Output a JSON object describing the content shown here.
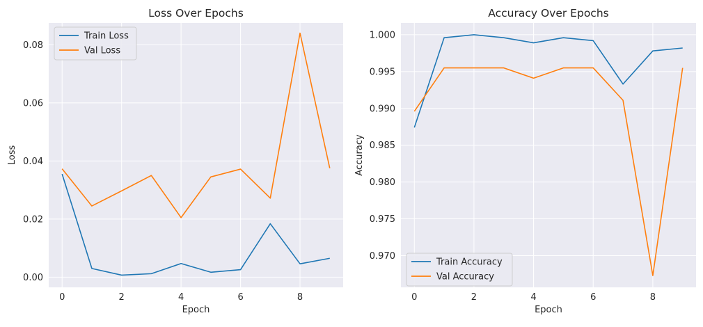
{
  "chart_data": [
    {
      "type": "line",
      "title": "Loss Over Epochs",
      "xlabel": "Epoch",
      "ylabel": "Loss",
      "xlim": [
        -0.45,
        9.45
      ],
      "ylim": [
        -0.0035,
        0.0875
      ],
      "xticks": [
        0,
        2,
        4,
        6,
        8
      ],
      "yticks": [
        0.0,
        0.02,
        0.04,
        0.06,
        0.08
      ],
      "ytick_labels": [
        "0.00",
        "0.02",
        "0.04",
        "0.06",
        "0.08"
      ],
      "x": [
        0,
        1,
        2,
        3,
        4,
        5,
        6,
        7,
        8,
        9
      ],
      "grid": true,
      "legend_position": "top-left",
      "series": [
        {
          "name": "Train Loss",
          "color": "#1f77b4",
          "values": [
            0.0355,
            0.003,
            0.0007,
            0.0012,
            0.0047,
            0.0017,
            0.0026,
            0.0184,
            0.0046,
            0.0065
          ]
        },
        {
          "name": "Val Loss",
          "color": "#ff7f0e",
          "values": [
            0.0373,
            0.0245,
            0.0297,
            0.035,
            0.0205,
            0.0345,
            0.0372,
            0.0272,
            0.084,
            0.0375
          ]
        }
      ]
    },
    {
      "type": "line",
      "title": "Accuracy Over Epochs",
      "xlabel": "Epoch",
      "ylabel": "Accuracy",
      "xlim": [
        -0.45,
        9.45
      ],
      "ylim": [
        0.9657,
        1.0016
      ],
      "xticks": [
        0,
        2,
        4,
        6,
        8
      ],
      "yticks": [
        0.97,
        0.975,
        0.98,
        0.985,
        0.99,
        0.995,
        1.0
      ],
      "ytick_labels": [
        "0.970",
        "0.975",
        "0.980",
        "0.985",
        "0.990",
        "0.995",
        "1.000"
      ],
      "x": [
        0,
        1,
        2,
        3,
        4,
        5,
        6,
        7,
        8,
        9
      ],
      "grid": true,
      "legend_position": "bottom-left",
      "series": [
        {
          "name": "Train Accuracy",
          "color": "#1f77b4",
          "values": [
            0.9874,
            0.9996,
            1.0,
            0.9996,
            0.9989,
            0.9996,
            0.9992,
            0.9933,
            0.9978,
            0.9982
          ]
        },
        {
          "name": "Val Accuracy",
          "color": "#ff7f0e",
          "values": [
            0.9896,
            0.9955,
            0.9955,
            0.9955,
            0.9941,
            0.9955,
            0.9955,
            0.9911,
            0.9673,
            0.9955
          ]
        }
      ]
    }
  ]
}
